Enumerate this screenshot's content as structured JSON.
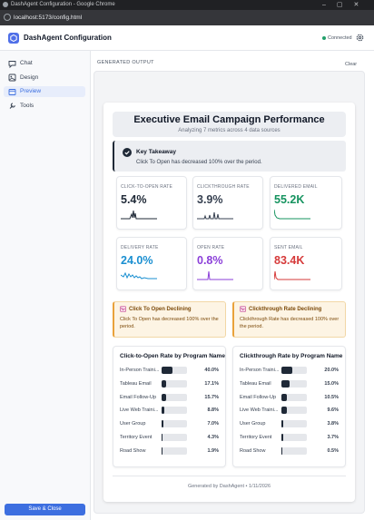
{
  "browser": {
    "window_title": "DashAgent Configuration - Google Chrome",
    "url": "localhost:5173/config.html"
  },
  "header": {
    "title": "DashAgent Configuration",
    "status": "Connected"
  },
  "sidebar": {
    "items": [
      "Chat",
      "Design",
      "Preview",
      "Tools"
    ],
    "active": "Preview",
    "save_button": "Save & Close"
  },
  "output": {
    "heading": "GENERATED OUTPUT",
    "clear": "Clear"
  },
  "report": {
    "title": "Executive Email Campaign Performance",
    "subtitle": "Analyzing 7 metrics across 4 data sources",
    "takeaway": {
      "heading": "Key Takeaway",
      "text": "Click To Open has decreased 100% over the period."
    },
    "metrics": [
      {
        "label": "CLICK-TO-OPEN RATE",
        "value": "5.4%",
        "color": "#1f2937"
      },
      {
        "label": "CLICKTHROUGH RATE",
        "value": "3.9%",
        "color": "#374151"
      },
      {
        "label": "DELIVERED EMAIL",
        "value": "55.2K",
        "color": "#15935f"
      },
      {
        "label": "DELIVERY RATE",
        "value": "24.0%",
        "color": "#1a8fd1"
      },
      {
        "label": "OPEN RATE",
        "value": "0.8%",
        "color": "#8b3fd9"
      },
      {
        "label": "SENT EMAIL",
        "value": "83.4K",
        "color": "#d63a3a"
      }
    ],
    "alerts": [
      {
        "title": "Click To Open Declining",
        "text": "Click To Open has decreased 100% over the period."
      },
      {
        "title": "Clickthrough Rate Declining",
        "text": "Clickthrough Rate has decreased 100% over the period."
      }
    ],
    "charts": [
      {
        "title": "Click-to-Open Rate by Program Name",
        "rows": [
          {
            "label": "In-Person Traini...",
            "value": 40.0,
            "value_label": "40.0%"
          },
          {
            "label": "Tableau Email",
            "value": 17.1,
            "value_label": "17.1%"
          },
          {
            "label": "Email Follow-Up",
            "value": 15.7,
            "value_label": "15.7%"
          },
          {
            "label": "Live Web Traini...",
            "value": 8.8,
            "value_label": "8.8%"
          },
          {
            "label": "User Group",
            "value": 7.0,
            "value_label": "7.0%"
          },
          {
            "label": "Territory Event",
            "value": 4.3,
            "value_label": "4.3%"
          },
          {
            "label": "Road Show",
            "value": 1.9,
            "value_label": "1.9%"
          }
        ]
      },
      {
        "title": "Clickthrough Rate by Program Name",
        "rows": [
          {
            "label": "In-Person Traini...",
            "value": 20.0,
            "value_label": "20.0%"
          },
          {
            "label": "Tableau Email",
            "value": 15.0,
            "value_label": "15.0%"
          },
          {
            "label": "Email Follow-Up",
            "value": 10.5,
            "value_label": "10.5%"
          },
          {
            "label": "Live Web Traini...",
            "value": 9.6,
            "value_label": "9.6%"
          },
          {
            "label": "User Group",
            "value": 3.8,
            "value_label": "3.8%"
          },
          {
            "label": "Territory Event",
            "value": 3.7,
            "value_label": "3.7%"
          },
          {
            "label": "Road Show",
            "value": 0.5,
            "value_label": "0.5%"
          }
        ]
      }
    ],
    "footer": "Generated by DashAgent • 1/11/2026"
  }
}
